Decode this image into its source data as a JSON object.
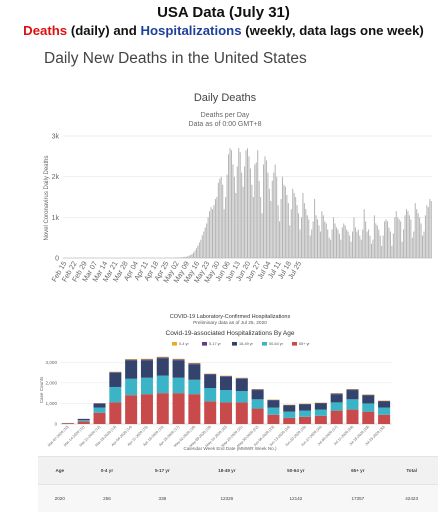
{
  "header": {
    "title": "USA Data (July 31)",
    "sub_deaths": "Deaths",
    "sub_mid": " (daily) and ",
    "sub_hosp": "Hospitalizations",
    "sub_end": " (weekly, data lags one week)"
  },
  "section_title": "Daily New Deaths in the United States",
  "colors": {
    "deaths_bar": "#b5b5b5",
    "age_0_4": "#e0ae2a",
    "age_5_17": "#5a3f8a",
    "age_18_49": "#34436b",
    "age_50_64": "#3cb4c8",
    "age_65_plus": "#c94a4a"
  },
  "chart_data": [
    {
      "type": "bar",
      "title": "Daily Deaths",
      "subtitle1": "Deaths per Day",
      "subtitle2": "Data as of 0:00 GMT+8",
      "ylabel": "Novel Coronavirus Daily Deaths",
      "ylim": [
        0,
        3000
      ],
      "yticks": [
        "0",
        "1k",
        "2k",
        "3k"
      ],
      "xticks": [
        "Feb 15",
        "Feb 22",
        "Feb 29",
        "Mar 07",
        "Mar 14",
        "Mar 21",
        "Mar 28",
        "Apr 04",
        "Apr 11",
        "Apr 18",
        "Apr 25",
        "May 02",
        "May 09",
        "May 16",
        "May 23",
        "May 30",
        "Jun 06",
        "Jun 13",
        "Jun 20",
        "Jun 27",
        "Jul 04",
        "Jul 11",
        "Jul 18",
        "Jul 25"
      ],
      "start": "2020-02-15",
      "values": [
        0,
        0,
        0,
        0,
        0,
        0,
        0,
        0,
        0,
        0,
        0,
        0,
        0,
        0,
        0,
        0,
        0,
        0,
        0,
        0,
        0,
        0,
        0,
        0,
        0,
        0,
        0,
        0,
        0,
        0,
        0,
        0,
        0,
        0,
        0,
        0,
        0,
        0,
        0,
        0,
        0,
        0,
        0,
        0,
        0,
        0,
        0,
        0,
        0,
        0,
        0,
        0,
        0,
        0,
        0,
        0,
        0,
        0,
        0,
        0,
        0,
        0,
        0,
        0,
        0,
        0,
        0,
        0,
        0,
        1,
        1,
        1,
        2,
        2,
        3,
        5,
        7,
        8,
        10,
        12,
        15,
        18,
        22,
        28,
        32,
        40,
        60,
        75,
        100,
        130,
        180,
        240,
        300,
        380,
        450,
        560,
        650,
        750,
        850,
        1000,
        1150,
        1250,
        1200,
        1300,
        1450,
        1500,
        1850,
        1950,
        2000,
        1800,
        1200,
        1500,
        2050,
        2550,
        2700,
        2650,
        2300,
        2000,
        1600,
        2250,
        2700,
        2600,
        2100,
        1750,
        2250,
        2650,
        2700,
        2500,
        2200,
        1800,
        1500,
        2300,
        2350,
        2650,
        1900,
        1500,
        1100,
        2300,
        2500,
        2400,
        2100,
        1700,
        1400,
        1900,
        2100,
        2300,
        2000,
        1300,
        900,
        1450,
        2000,
        1800,
        1750,
        1550,
        1350,
        800,
        1200,
        1700,
        1600,
        1500,
        1300,
        1100,
        700,
        1000,
        1600,
        1350,
        1200,
        1050,
        950,
        550,
        700,
        900,
        1450,
        1050,
        950,
        800,
        650,
        1150,
        1050,
        900,
        850,
        700,
        500,
        450,
        700,
        1000,
        850,
        750,
        700,
        600,
        450,
        750,
        850,
        800,
        700,
        650,
        550,
        400,
        650,
        1000,
        750,
        650,
        700,
        550,
        450,
        700,
        1200,
        900,
        650,
        700,
        550,
        350,
        450,
        1050,
        850,
        800,
        700,
        550,
        300,
        550,
        900,
        950,
        900,
        750,
        650,
        300,
        600,
        1000,
        1150,
        1000,
        950,
        900,
        400,
        700,
        1050,
        1200,
        1150,
        1050,
        950,
        500,
        650,
        1350,
        1200,
        1100,
        1000,
        850,
        550,
        650,
        1050,
        1300,
        1250,
        1450,
        1400
      ]
    },
    {
      "type": "bar",
      "stacked": true,
      "title": "COVID-19 Laboratory-Confirmed Hospitalizations",
      "subtitle": "Preliminary data as of Jul 25, 2020",
      "subtitle2": "Covid-19-associated Hospitalizations By Age",
      "ylabel": "Case Counts",
      "xlabel": "Calendar Week End Date (MMWR Week No.)",
      "ylim": [
        0,
        3500
      ],
      "yticks": [
        "0",
        "1,000",
        "2,000",
        "3,000"
      ],
      "categories": [
        "Mar-07-2020 (10)",
        "Mar-14-2020 (11)",
        "Mar-21-2020 (12)",
        "Mar-28-2020 (13)",
        "Apr-04-2020 (14)",
        "Apr-11-2020 (15)",
        "Apr-18-2020 (16)",
        "Apr-25-2020 (17)",
        "May-02-2020 (18)",
        "May-09-2020 (19)",
        "May-16-2020 (20)",
        "May-23-2020 (21)",
        "May-30-2020 (22)",
        "Jun-06-2020 (23)",
        "Jun-13-2020 (24)",
        "Jun-20-2020 (25)",
        "Jun-27-2020 (26)",
        "Jul-04-2020 (27)",
        "Jul-11-2020 (28)",
        "Jul-18-2020 (29)",
        "Jul-25-2020 (30)"
      ],
      "series": [
        {
          "name": "0-4 yr",
          "values": [
            0,
            0,
            5,
            20,
            30,
            30,
            30,
            30,
            30,
            20,
            20,
            20,
            20,
            20,
            20,
            20,
            20,
            20,
            20,
            20,
            20
          ]
        },
        {
          "name": "5-17 yr",
          "values": [
            0,
            0,
            5,
            20,
            30,
            40,
            40,
            40,
            40,
            30,
            30,
            30,
            30,
            20,
            20,
            20,
            20,
            30,
            30,
            20,
            20
          ]
        },
        {
          "name": "18-49 yr",
          "values": [
            10,
            60,
            200,
            700,
            900,
            850,
            850,
            850,
            750,
            650,
            650,
            600,
            450,
            350,
            300,
            300,
            300,
            400,
            450,
            400,
            300
          ]
        },
        {
          "name": "50-64 yr",
          "values": [
            10,
            60,
            250,
            750,
            800,
            800,
            850,
            750,
            700,
            650,
            600,
            550,
            450,
            350,
            300,
            300,
            300,
            400,
            500,
            400,
            350
          ]
        },
        {
          "name": "65+ yr",
          "values": [
            30,
            130,
            550,
            1050,
            1400,
            1450,
            1500,
            1500,
            1450,
            1100,
            1050,
            1050,
            750,
            450,
            300,
            350,
            400,
            650,
            700,
            600,
            450
          ]
        }
      ]
    }
  ],
  "table": {
    "headers": [
      "Age",
      "0-4 yr",
      "5-17 yr",
      "18-49 yr",
      "50-64 yr",
      "65+ yr",
      "Total"
    ],
    "row": [
      "2020",
      "256",
      "338",
      "12326",
      "12142",
      "17357",
      "42423"
    ]
  }
}
